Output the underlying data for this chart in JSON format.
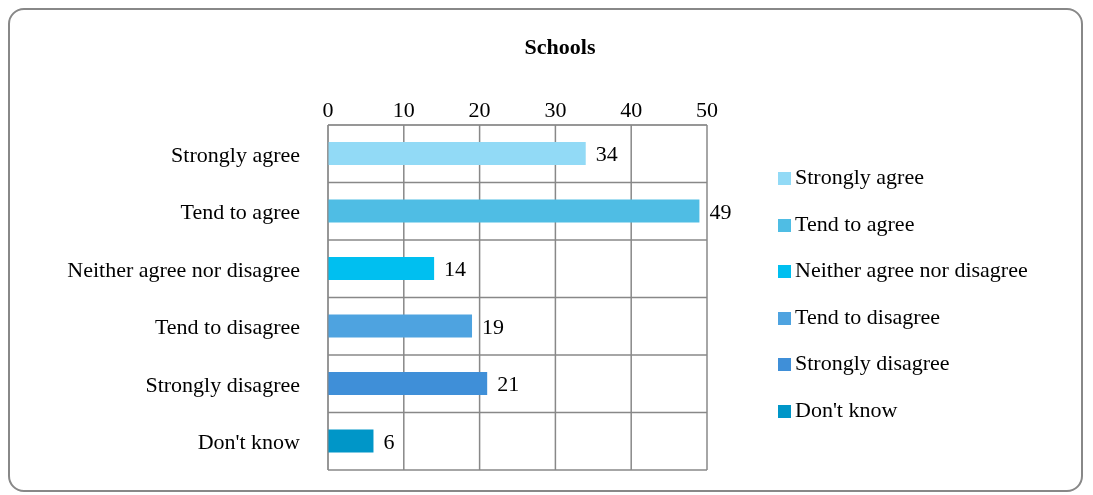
{
  "chart_data": {
    "type": "bar",
    "orientation": "horizontal",
    "stacked": true,
    "title": "Schools",
    "categories": [
      "Strongly agree",
      "Tend to agree",
      "Neither agree nor disagree",
      "Tend to disagree",
      "Strongly disagree",
      "Don't know"
    ],
    "series": [
      {
        "name": "Strongly agree",
        "color": "#92daf6",
        "values": [
          34,
          null,
          null,
          null,
          null,
          null
        ]
      },
      {
        "name": "Tend to agree",
        "color": "#4fbde4",
        "values": [
          null,
          49,
          null,
          null,
          null,
          null
        ]
      },
      {
        "name": "Neither agree nor disagree",
        "color": "#00bff0",
        "values": [
          null,
          null,
          14,
          null,
          null,
          null
        ]
      },
      {
        "name": "Tend to disagree",
        "color": "#4ea3e0",
        "values": [
          null,
          null,
          null,
          19,
          null,
          null
        ]
      },
      {
        "name": "Strongly disagree",
        "color": "#3f8fd8",
        "values": [
          null,
          null,
          null,
          null,
          21,
          null
        ]
      },
      {
        "name": "Don't know",
        "color": "#0096c8",
        "values": [
          null,
          null,
          null,
          null,
          null,
          6
        ]
      }
    ],
    "xlim": [
      0,
      50
    ],
    "xticks": [
      0,
      10,
      20,
      30,
      40,
      50
    ],
    "grid": true,
    "legend": "right",
    "data_labels": true
  }
}
